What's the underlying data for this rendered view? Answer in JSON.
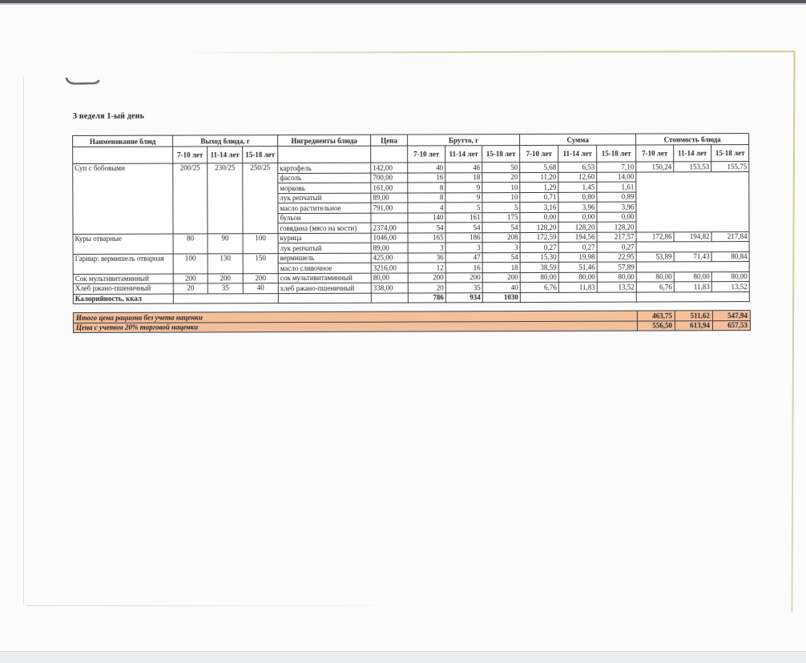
{
  "page": {
    "title": "3 неделя 1-ый день"
  },
  "table": {
    "headers": {
      "name": "Наименование блюд",
      "output": "Выход блюда, г",
      "ingredients": "Ингредиенты блюда",
      "price": "Цена",
      "gross": "Брутто, г",
      "sum": "Сумма",
      "cost": "Стоимость блюда",
      "age_groups": [
        "7-10 лет",
        "11-14 лет",
        "15-18 лет"
      ]
    },
    "dishes": [
      {
        "name": "Суп с бобовыми",
        "output": [
          "200/25",
          "230/25",
          "250/25"
        ],
        "cost": [
          "150,24",
          "153,53",
          "155,75"
        ],
        "ingredients": [
          {
            "name": "картофель",
            "price": "142,00",
            "gross": [
              "40",
              "46",
              "50"
            ],
            "sum": [
              "5,68",
              "6,53",
              "7,10"
            ]
          },
          {
            "name": "фасоль",
            "price": "700,00",
            "gross": [
              "16",
              "18",
              "20"
            ],
            "sum": [
              "11,20",
              "12,60",
              "14,00"
            ]
          },
          {
            "name": "морковь",
            "price": "161,00",
            "gross": [
              "8",
              "9",
              "10"
            ],
            "sum": [
              "1,29",
              "1,45",
              "1,61"
            ]
          },
          {
            "name": "лук репчатый",
            "price": "89,00",
            "gross": [
              "8",
              "9",
              "10"
            ],
            "sum": [
              "0,71",
              "0,80",
              "0,89"
            ]
          },
          {
            "name": "масло растительное",
            "price": "791,00",
            "gross": [
              "4",
              "5",
              "5"
            ],
            "sum": [
              "3,16",
              "3,96",
              "3,96"
            ]
          },
          {
            "name": "бульон",
            "price": "",
            "gross": [
              "140",
              "161",
              "175"
            ],
            "sum": [
              "0,00",
              "0,00",
              "0,00"
            ]
          },
          {
            "name": "говядина (мясо на кости)",
            "price": "2374,00",
            "gross": [
              "54",
              "54",
              "54"
            ],
            "sum": [
              "128,20",
              "128,20",
              "128,20"
            ]
          }
        ]
      },
      {
        "name": "Куры отварные",
        "output": [
          "80",
          "90",
          "100"
        ],
        "cost": [
          "172,86",
          "194,82",
          "217,84"
        ],
        "ingredients": [
          {
            "name": "курица",
            "price": "1046,00",
            "gross": [
              "165",
              "186",
              "208"
            ],
            "sum": [
              "172,59",
              "194,56",
              "217,57"
            ]
          },
          {
            "name": "лук репчатый",
            "price": "89,00",
            "gross": [
              "3",
              "3",
              "3"
            ],
            "sum": [
              "0,27",
              "0,27",
              "0,27"
            ]
          }
        ]
      },
      {
        "name": "Гарнир: вермишель отварная",
        "output": [
          "100",
          "130",
          "150"
        ],
        "cost": [
          "53,89",
          "71,43",
          "80,84"
        ],
        "ingredients": [
          {
            "name": "вермишель",
            "price": "425,00",
            "gross": [
              "36",
              "47",
              "54"
            ],
            "sum": [
              "15,30",
              "19,98",
              "22,95"
            ]
          },
          {
            "name": "масло сливочное",
            "price": "3216,00",
            "gross": [
              "12",
              "16",
              "18"
            ],
            "sum": [
              "38,59",
              "51,46",
              "57,89"
            ]
          }
        ]
      },
      {
        "name": "Сок мультивитаминный",
        "output": [
          "200",
          "200",
          "200"
        ],
        "cost": [
          "80,00",
          "80,00",
          "80,00"
        ],
        "ingredients": [
          {
            "name": "сок мультивитаминный",
            "price": "80,00",
            "gross": [
              "200",
              "200",
              "200"
            ],
            "sum": [
              "80,00",
              "80,00",
              "80,00"
            ]
          }
        ]
      },
      {
        "name": "Хлеб ржано-пшеничный",
        "output": [
          "20",
          "35",
          "40"
        ],
        "cost": [
          "6,76",
          "11,83",
          "13,52"
        ],
        "ingredients": [
          {
            "name": "хлеб ржано-пшеничный",
            "price": "338,00",
            "gross": [
              "20",
              "35",
              "40"
            ],
            "sum": [
              "6,76",
              "11,83",
              "13,52"
            ]
          }
        ]
      }
    ],
    "calories_row": {
      "label": "Калорийность, ккал",
      "values": [
        "786",
        "934",
        "1030"
      ]
    }
  },
  "totals": [
    {
      "label": "Итого цена рациона без учета наценки",
      "values": [
        "463,75",
        "511,62",
        "547,94"
      ]
    },
    {
      "label": "Цена с учетом 20% торговой наценки",
      "values": [
        "556,50",
        "613,94",
        "657,53"
      ]
    }
  ],
  "colors": {
    "totals_bg": "#f3c09c",
    "table_border": "#3a3c41",
    "text": "#232327"
  }
}
